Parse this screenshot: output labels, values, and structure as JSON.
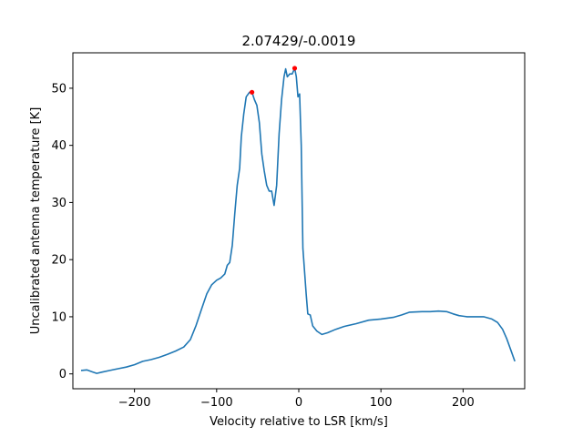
{
  "chart_data": {
    "type": "line",
    "title": "2.07429/-0.0019",
    "xlabel": "Velocity relative to LSR [km/s]",
    "ylabel": "Uncalibrated antenna temperature [K]",
    "xlim": [
      -275,
      275
    ],
    "ylim": [
      -2.6,
      56.2
    ],
    "xticks": [
      -200,
      -100,
      0,
      100,
      200
    ],
    "xtick_labels": [
      "−200",
      "−100",
      "0",
      "100",
      "200"
    ],
    "yticks": [
      0,
      10,
      20,
      30,
      40,
      50
    ],
    "ytick_labels": [
      "0",
      "10",
      "20",
      "30",
      "40",
      "50"
    ],
    "grid": false,
    "series": [
      {
        "color": "#1f77b4",
        "points": [
          [
            -265,
            0.6
          ],
          [
            -258,
            0.7
          ],
          [
            -252,
            0.4
          ],
          [
            -246,
            0.1
          ],
          [
            -240,
            0.3
          ],
          [
            -230,
            0.6
          ],
          [
            -220,
            0.9
          ],
          [
            -210,
            1.2
          ],
          [
            -200,
            1.6
          ],
          [
            -190,
            2.2
          ],
          [
            -180,
            2.5
          ],
          [
            -170,
            2.9
          ],
          [
            -160,
            3.4
          ],
          [
            -150,
            4.0
          ],
          [
            -140,
            4.7
          ],
          [
            -132,
            6.0
          ],
          [
            -125,
            8.5
          ],
          [
            -118,
            11.5
          ],
          [
            -112,
            14.0
          ],
          [
            -106,
            15.6
          ],
          [
            -100,
            16.4
          ],
          [
            -95,
            16.8
          ],
          [
            -90,
            17.5
          ],
          [
            -87,
            19.0
          ],
          [
            -84,
            19.5
          ],
          [
            -81,
            22.5
          ],
          [
            -78,
            28.0
          ],
          [
            -75,
            33.0
          ],
          [
            -72,
            36.0
          ],
          [
            -70,
            41.5
          ],
          [
            -67,
            45.5
          ],
          [
            -64,
            48.5
          ],
          [
            -60,
            49.3
          ],
          [
            -57,
            49.3
          ],
          [
            -54,
            48.0
          ],
          [
            -51,
            47.0
          ],
          [
            -48,
            44.0
          ],
          [
            -45,
            38.5
          ],
          [
            -42,
            35.5
          ],
          [
            -39,
            33.0
          ],
          [
            -36,
            32.0
          ],
          [
            -33,
            32.0
          ],
          [
            -30,
            29.5
          ],
          [
            -27,
            33.0
          ],
          [
            -24,
            42.0
          ],
          [
            -21,
            48.0
          ],
          [
            -18,
            52.0
          ],
          [
            -16,
            53.4
          ],
          [
            -14,
            52.0
          ],
          [
            -11,
            52.5
          ],
          [
            -8,
            52.5
          ],
          [
            -5,
            53.5
          ],
          [
            -3,
            52.0
          ],
          [
            -1,
            48.5
          ],
          [
            1,
            49.0
          ],
          [
            3,
            40.0
          ],
          [
            5,
            22.0
          ],
          [
            7,
            18.0
          ],
          [
            9,
            14.0
          ],
          [
            11,
            10.5
          ],
          [
            14,
            10.3
          ],
          [
            17,
            8.4
          ],
          [
            22,
            7.5
          ],
          [
            28,
            6.9
          ],
          [
            35,
            7.2
          ],
          [
            45,
            7.8
          ],
          [
            55,
            8.3
          ],
          [
            70,
            8.8
          ],
          [
            85,
            9.4
          ],
          [
            100,
            9.6
          ],
          [
            115,
            9.9
          ],
          [
            125,
            10.3
          ],
          [
            135,
            10.8
          ],
          [
            150,
            10.9
          ],
          [
            160,
            10.9
          ],
          [
            170,
            11.0
          ],
          [
            180,
            10.9
          ],
          [
            188,
            10.5
          ],
          [
            195,
            10.2
          ],
          [
            205,
            10.0
          ],
          [
            215,
            10.0
          ],
          [
            225,
            10.0
          ],
          [
            235,
            9.6
          ],
          [
            242,
            9.0
          ],
          [
            248,
            7.8
          ],
          [
            253,
            6.2
          ],
          [
            258,
            4.2
          ],
          [
            263,
            2.2
          ]
        ]
      }
    ],
    "markers": [
      {
        "x": -57,
        "y": 49.3,
        "color": "#ff0000"
      },
      {
        "x": -5,
        "y": 53.5,
        "color": "#ff0000"
      }
    ]
  }
}
